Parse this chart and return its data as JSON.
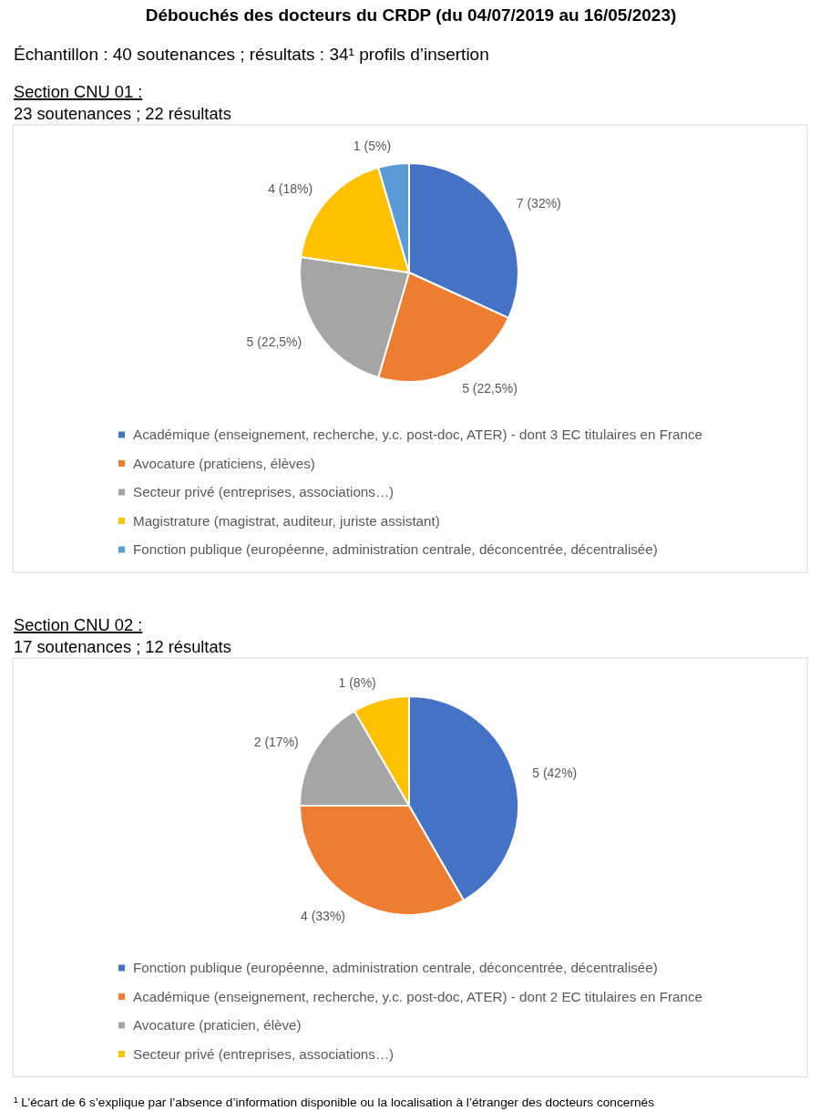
{
  "chart_data": [
    {
      "type": "pie",
      "title": "Débouchés des docteurs du CRDP (du 04/07/2019 au 16/05/2023)",
      "subtitle": "Échantillon : 40 soutenances ; résultats : 34¹ profils d’insertion",
      "annotations": [
        "Section CNU 01 :",
        "23 soutenances ; 22 résultats"
      ],
      "categories": [
        "Académique (enseignement, recherche, y.c. post-doc, ATER) - dont 3 EC titulaires en France",
        "Avocature (praticiens, élèves)",
        "Secteur privé (entreprises, associations…)",
        "Magistrature (magistrat, auditeur, juriste assistant)",
        "Fonction publique (européenne, administration centrale, déconcentrée, décentralisée)"
      ],
      "values": [
        7,
        5,
        5,
        4,
        1
      ],
      "colors": [
        "#4472c4",
        "#ed7d31",
        "#a5a5a5",
        "#ffc000",
        "#5b9bd5"
      ],
      "value_labels": [
        "7 (32%)",
        "5 (22,5%)",
        "5 (22,5%)",
        "4 (18%)",
        "1 (5%)"
      ],
      "legend": "bottom"
    },
    {
      "type": "pie",
      "annotations": [
        "Section CNU 02 :",
        "17 soutenances ; 12 résultats",
        "¹ L’écart de 6 s’explique par l’absence d’information disponible ou la localisation à l’étranger des docteurs concernés"
      ],
      "categories": [
        "Fonction publique (européenne, administration centrale, déconcentrée, décentralisée)",
        "Académique (enseignement, recherche, y.c. post-doc, ATER) - dont 2 EC titulaires en France",
        "Avocature (praticien, élève)",
        "Secteur privé (entreprises, associations…)"
      ],
      "values": [
        5,
        4,
        2,
        1
      ],
      "colors": [
        "#4472c4",
        "#ed7d31",
        "#a5a5a5",
        "#ffc000"
      ],
      "value_labels": [
        "5 (42%)",
        "4 (33%)",
        "2 (17%)",
        "1 (8%)"
      ],
      "legend": "bottom"
    }
  ]
}
